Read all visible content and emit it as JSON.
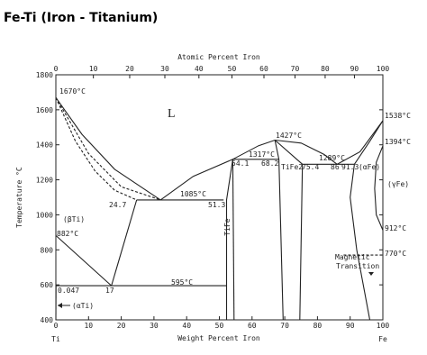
{
  "chart_data": {
    "type": "phase-diagram",
    "title": "Fe-Ti (Iron - Titanium)",
    "top_axis_label": "Atomic Percent Iron",
    "x_label": "Weight Percent Iron",
    "y_label": "Temperature °C",
    "left_element": "Ti",
    "right_element": "Fe",
    "xlim": [
      0,
      100
    ],
    "ylim": [
      400,
      1800
    ],
    "xticks": [
      0,
      10,
      20,
      30,
      40,
      50,
      60,
      70,
      80,
      90,
      100
    ],
    "x2ticks": [
      0,
      10,
      20,
      30,
      40,
      50,
      60,
      70,
      80,
      90,
      100
    ],
    "yticks": [
      400,
      600,
      800,
      1000,
      1200,
      1400,
      1600,
      1800
    ],
    "line_color": "#222222",
    "boundaries": [
      {
        "dashed": false,
        "points": [
          [
            0,
            1670
          ],
          [
            8,
            1460
          ],
          [
            18,
            1260
          ],
          [
            32,
            1085
          ]
        ]
      },
      {
        "dashed": true,
        "points": [
          [
            0,
            1670
          ],
          [
            6,
            1420
          ],
          [
            12,
            1250
          ],
          [
            18,
            1140
          ],
          [
            24.7,
            1085
          ]
        ]
      },
      {
        "dashed": true,
        "points": [
          [
            0,
            1670
          ],
          [
            10,
            1350
          ],
          [
            20,
            1160
          ],
          [
            32,
            1085
          ]
        ]
      },
      {
        "dashed": false,
        "points": [
          [
            24.7,
            1085
          ],
          [
            51.3,
            1085
          ]
        ]
      },
      {
        "dashed": false,
        "points": [
          [
            24.7,
            1085
          ],
          [
            17,
            595
          ]
        ]
      },
      {
        "dashed": false,
        "points": [
          [
            0,
            882
          ],
          [
            17,
            595
          ]
        ]
      },
      {
        "dashed": false,
        "points": [
          [
            0.047,
            595
          ],
          [
            52.2,
            595
          ]
        ]
      },
      {
        "dashed": false,
        "points": [
          [
            0.047,
            595
          ],
          [
            0,
            400
          ]
        ]
      },
      {
        "dashed": false,
        "points": [
          [
            54.1,
            1317
          ],
          [
            52.2,
            1085
          ],
          [
            52.2,
            400
          ]
        ]
      },
      {
        "dashed": false,
        "points": [
          [
            54.1,
            1317
          ],
          [
            54.5,
            400
          ]
        ]
      },
      {
        "dashed": false,
        "points": [
          [
            32,
            1085
          ],
          [
            42,
            1220
          ],
          [
            54.1,
            1317
          ],
          [
            62,
            1395
          ],
          [
            67,
            1427
          ],
          [
            75,
            1410
          ],
          [
            82,
            1345
          ],
          [
            86,
            1289
          ]
        ]
      },
      {
        "dashed": false,
        "points": [
          [
            54.1,
            1317
          ],
          [
            68.2,
            1317
          ]
        ]
      },
      {
        "dashed": false,
        "points": [
          [
            67,
            1427
          ],
          [
            68.2,
            1317
          ],
          [
            69.5,
            400
          ]
        ]
      },
      {
        "dashed": false,
        "points": [
          [
            67,
            1427
          ],
          [
            75.4,
            1289
          ],
          [
            74.6,
            400
          ]
        ]
      },
      {
        "dashed": false,
        "points": [
          [
            75.4,
            1289
          ],
          [
            91.3,
            1289
          ]
        ]
      },
      {
        "dashed": false,
        "points": [
          [
            86,
            1289
          ],
          [
            93,
            1360
          ],
          [
            100,
            1538
          ]
        ]
      },
      {
        "dashed": false,
        "points": [
          [
            91.3,
            1289
          ],
          [
            96,
            1420
          ],
          [
            100,
            1538
          ]
        ]
      },
      {
        "dashed": false,
        "points": [
          [
            91.3,
            1289
          ],
          [
            90,
            1100
          ],
          [
            92,
            800
          ],
          [
            96,
            400
          ]
        ]
      },
      {
        "dashed": false,
        "points": [
          [
            100,
            1394
          ],
          [
            98,
            1300
          ],
          [
            97.5,
            1150
          ],
          [
            98,
            1000
          ],
          [
            100,
            912
          ]
        ]
      },
      {
        "dashed": true,
        "points": [
          [
            88,
            770
          ],
          [
            100,
            770
          ]
        ]
      }
    ],
    "annotations": [
      "1670°C",
      "L",
      "1427°C",
      "1317°C",
      "1289°C",
      "1538°C",
      "1394°C",
      "(γFe)",
      "912°C",
      "770°C",
      "54.1",
      "68.2",
      "TiFe2",
      "75.4",
      "86",
      "91.3",
      "(αFe)",
      "1085°C",
      "24.7",
      "51.3",
      "TiFe",
      "(βTi)",
      "882°C",
      "595°C",
      "0.047",
      "17",
      "(αTi)",
      "Magnetic",
      "Transition"
    ]
  }
}
